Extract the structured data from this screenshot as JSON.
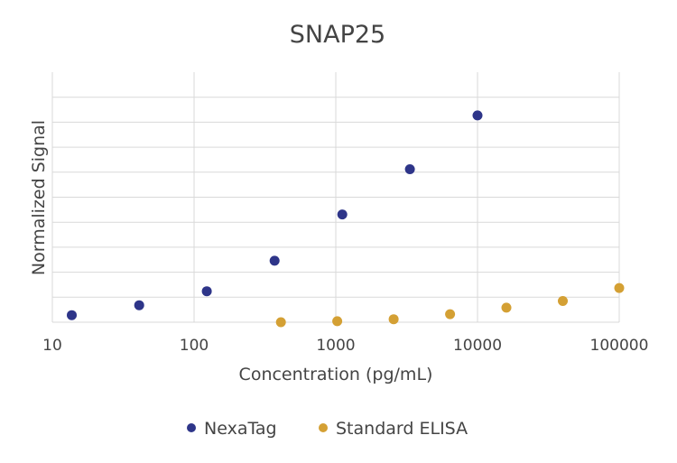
{
  "chart_data": {
    "type": "scatter",
    "title": "SNAP25",
    "xlabel": "Concentration (pg/mL)",
    "ylabel": "Normalized Signal",
    "x_scale": "log",
    "xlim": [
      10,
      100000
    ],
    "x_ticks": [
      "10",
      "100",
      "1000",
      "10000",
      "100000"
    ],
    "ylim": [
      0,
      10
    ],
    "y_tick_labels_shown": false,
    "grid": true,
    "legend_position": "bottom",
    "series": [
      {
        "name": "NexaTag",
        "color": "#2e3589",
        "points": [
          {
            "x": 13.7,
            "y": 0.28
          },
          {
            "x": 41,
            "y": 0.68
          },
          {
            "x": 123,
            "y": 1.24
          },
          {
            "x": 370,
            "y": 2.46
          },
          {
            "x": 1111,
            "y": 4.31
          },
          {
            "x": 3333,
            "y": 6.12
          },
          {
            "x": 10000,
            "y": 8.27
          }
        ]
      },
      {
        "name": "Standard ELISA",
        "color": "#d4a034",
        "points": [
          {
            "x": 410,
            "y": 0.0
          },
          {
            "x": 1024,
            "y": 0.04
          },
          {
            "x": 2560,
            "y": 0.12
          },
          {
            "x": 6400,
            "y": 0.32
          },
          {
            "x": 16000,
            "y": 0.58
          },
          {
            "x": 40000,
            "y": 0.85
          },
          {
            "x": 100000,
            "y": 1.37
          }
        ]
      }
    ]
  }
}
